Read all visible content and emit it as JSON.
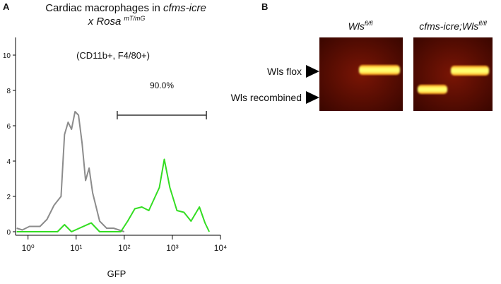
{
  "chart_data": {
    "type": "line",
    "panel_label": "A",
    "title": {
      "line1": "Cardiac macrophages in",
      "line1_italic": "cfms-icre",
      "line2": "x Rosa",
      "line2_sup": "mT/mG"
    },
    "annotations": [
      "(CD11b+, F4/80+)"
    ],
    "gate": {
      "label": "90.0%",
      "x": [
        71.5,
        5100
      ],
      "y": 6.6
    },
    "xlabel": "GFP",
    "xscale": "log",
    "xlim": [
      0.55,
      10000
    ],
    "xticks": [
      {
        "value": 1,
        "label": "10⁰"
      },
      {
        "value": 10,
        "label": "10¹"
      },
      {
        "value": 100,
        "label": "10²"
      },
      {
        "value": 1000,
        "label": "10³"
      },
      {
        "value": 10000,
        "label": "10⁴"
      }
    ],
    "ylim": [
      -0.2,
      11
    ],
    "yticks": [
      0,
      2,
      4,
      6,
      8,
      10
    ],
    "series": [
      {
        "color": "#8c8c8c",
        "x": [
          0.58,
          0.76,
          1.07,
          1.77,
          2.48,
          3.47,
          4.86,
          5.74,
          6.8,
          8.0,
          9.5,
          11.2,
          13.3,
          15.7,
          18.6,
          22,
          30.8,
          43,
          60,
          100
        ],
        "values": [
          0.2,
          0.1,
          0.3,
          0.3,
          0.7,
          1.5,
          2.0,
          5.5,
          6.2,
          5.8,
          6.8,
          6.6,
          5.0,
          2.9,
          3.6,
          2.2,
          0.6,
          0.2,
          0.2,
          0
        ]
      },
      {
        "color": "#33dd22",
        "x": [
          0.58,
          4.1,
          5.74,
          8.0,
          20.6,
          30.8,
          84.5,
          118,
          166,
          232,
          324,
          537,
          679,
          889,
          1245,
          1740,
          2440,
          3650,
          4770,
          5840
        ],
        "values": [
          0,
          0,
          0.4,
          0,
          0.5,
          0,
          0,
          0.6,
          1.3,
          1.4,
          1.2,
          2.5,
          4.1,
          2.5,
          1.2,
          1.1,
          0.6,
          1.4,
          0.5,
          0
        ]
      }
    ]
  },
  "gel": {
    "panel_label": "B",
    "lanes": [
      {
        "name": "Wls",
        "sup": "fl/fl"
      },
      {
        "name": "cfms-icre;Wls",
        "sup": "fl/fl"
      }
    ],
    "bands": [
      "Wls flox",
      "Wls recombined"
    ]
  }
}
